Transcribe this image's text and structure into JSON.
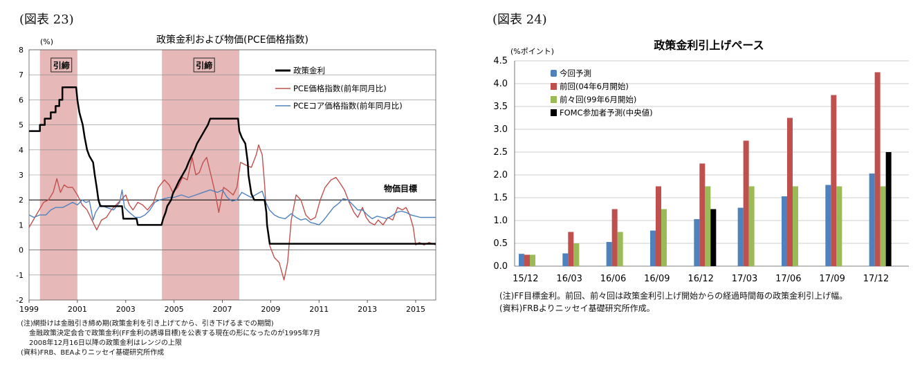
{
  "left": {
    "figure_label": "(図表 23)",
    "notes": [
      "(注)網掛けは金融引き締め期(政策金利を引き上げてから、引き下げるまでの期間)",
      "金融政策決定会合で政策金利(FF金利の誘導目標)を公表する現在の形になったのが1995年7月",
      "2008年12月16日以降の政策金利はレンジの上限",
      "(資料)FRB、BEAよりニッセイ基礎研究所作成"
    ]
  },
  "right": {
    "figure_label": "(図表 24)",
    "notes": [
      "(注)FF目標金利。前回、前々回は政策金利引上げ開始からの経過時間毎の政策金利引上げ幅。",
      "(資料)FRBよりニッセイ基礎研究所作成。"
    ]
  },
  "chart_data": [
    {
      "type": "line",
      "title": "政策金利および物価(PCE価格指数)",
      "ylabel": "(%)",
      "ylim": [
        -2,
        8
      ],
      "yticks": [
        -2,
        -1,
        0,
        1,
        2,
        3,
        4,
        5,
        6,
        7,
        8
      ],
      "xlim": [
        1999.0,
        2015.83
      ],
      "xticks": [
        "1999",
        "2001",
        "2003",
        "2005",
        "2007",
        "2009",
        "2011",
        "2013",
        "2015"
      ],
      "grid": true,
      "legend_position": "top-right",
      "shaded_periods": [
        {
          "label": "引締",
          "start": 1999.45,
          "end": 2001.0
        },
        {
          "label": "引締",
          "start": 2004.5,
          "end": 2007.7
        }
      ],
      "reference_line": {
        "label": "物価目標",
        "y": 2
      },
      "colors": {
        "policy": "#000000",
        "pce": "#c0504d",
        "core": "#4f81bd",
        "shade": "#e6b9b8"
      },
      "series": [
        {
          "name": "政策金利",
          "points": [
            [
              1999.0,
              4.75
            ],
            [
              1999.45,
              4.75
            ],
            [
              1999.45,
              5.0
            ],
            [
              1999.65,
              5.0
            ],
            [
              1999.65,
              5.25
            ],
            [
              1999.9,
              5.25
            ],
            [
              1999.9,
              5.5
            ],
            [
              2000.1,
              5.5
            ],
            [
              2000.1,
              5.75
            ],
            [
              2000.25,
              5.75
            ],
            [
              2000.25,
              6.0
            ],
            [
              2000.38,
              6.0
            ],
            [
              2000.38,
              6.5
            ],
            [
              2000.95,
              6.5
            ],
            [
              2001.0,
              6.0
            ],
            [
              2001.08,
              5.5
            ],
            [
              2001.22,
              5.0
            ],
            [
              2001.3,
              4.5
            ],
            [
              2001.4,
              4.0
            ],
            [
              2001.5,
              3.75
            ],
            [
              2001.65,
              3.5
            ],
            [
              2001.72,
              3.0
            ],
            [
              2001.8,
              2.5
            ],
            [
              2001.87,
              2.0
            ],
            [
              2001.95,
              1.75
            ],
            [
              2002.85,
              1.75
            ],
            [
              2002.9,
              1.25
            ],
            [
              2003.45,
              1.25
            ],
            [
              2003.5,
              1.0
            ],
            [
              2004.48,
              1.0
            ],
            [
              2004.55,
              1.25
            ],
            [
              2004.65,
              1.5
            ],
            [
              2004.72,
              1.75
            ],
            [
              2004.88,
              2.0
            ],
            [
              2004.95,
              2.25
            ],
            [
              2005.08,
              2.5
            ],
            [
              2005.2,
              2.75
            ],
            [
              2005.35,
              3.0
            ],
            [
              2005.5,
              3.25
            ],
            [
              2005.6,
              3.5
            ],
            [
              2005.72,
              3.75
            ],
            [
              2005.85,
              4.0
            ],
            [
              2005.95,
              4.25
            ],
            [
              2006.1,
              4.5
            ],
            [
              2006.25,
              4.75
            ],
            [
              2006.4,
              5.0
            ],
            [
              2006.5,
              5.25
            ],
            [
              2007.65,
              5.25
            ],
            [
              2007.7,
              4.75
            ],
            [
              2007.8,
              4.5
            ],
            [
              2007.95,
              4.25
            ],
            [
              2008.05,
              3.5
            ],
            [
              2008.08,
              3.0
            ],
            [
              2008.2,
              2.25
            ],
            [
              2008.32,
              2.0
            ],
            [
              2008.75,
              2.0
            ],
            [
              2008.82,
              1.5
            ],
            [
              2008.85,
              1.0
            ],
            [
              2008.96,
              0.25
            ],
            [
              2015.83,
              0.25
            ]
          ]
        },
        {
          "name": "PCE価格指数(前年同月比)",
          "points": [
            [
              1999.0,
              0.9
            ],
            [
              1999.3,
              1.4
            ],
            [
              1999.6,
              1.9
            ],
            [
              1999.8,
              2.0
            ],
            [
              2000.0,
              2.3
            ],
            [
              2000.15,
              2.85
            ],
            [
              2000.3,
              2.3
            ],
            [
              2000.45,
              2.6
            ],
            [
              2000.6,
              2.5
            ],
            [
              2000.8,
              2.5
            ],
            [
              2001.0,
              2.2
            ],
            [
              2001.2,
              1.8
            ],
            [
              2001.4,
              1.6
            ],
            [
              2001.6,
              1.2
            ],
            [
              2001.8,
              0.8
            ],
            [
              2002.0,
              1.2
            ],
            [
              2002.2,
              1.3
            ],
            [
              2002.4,
              1.6
            ],
            [
              2002.6,
              1.8
            ],
            [
              2002.8,
              2.0
            ],
            [
              2003.0,
              2.2
            ],
            [
              2003.15,
              1.8
            ],
            [
              2003.3,
              1.6
            ],
            [
              2003.5,
              1.9
            ],
            [
              2003.7,
              1.8
            ],
            [
              2003.9,
              1.6
            ],
            [
              2004.15,
              1.9
            ],
            [
              2004.35,
              2.5
            ],
            [
              2004.6,
              2.8
            ],
            [
              2004.8,
              2.6
            ],
            [
              2004.95,
              2.3
            ],
            [
              2005.15,
              2.5
            ],
            [
              2005.35,
              2.9
            ],
            [
              2005.55,
              2.8
            ],
            [
              2005.75,
              3.7
            ],
            [
              2005.9,
              3.0
            ],
            [
              2006.05,
              3.1
            ],
            [
              2006.2,
              3.5
            ],
            [
              2006.35,
              3.7
            ],
            [
              2006.55,
              2.9
            ],
            [
              2006.72,
              2.2
            ],
            [
              2006.85,
              1.5
            ],
            [
              2007.05,
              2.5
            ],
            [
              2007.2,
              2.4
            ],
            [
              2007.45,
              2.2
            ],
            [
              2007.6,
              2.5
            ],
            [
              2007.75,
              3.5
            ],
            [
              2007.95,
              3.4
            ],
            [
              2008.2,
              3.3
            ],
            [
              2008.4,
              3.8
            ],
            [
              2008.5,
              4.2
            ],
            [
              2008.65,
              3.8
            ],
            [
              2008.75,
              2.6
            ],
            [
              2008.85,
              1.0
            ],
            [
              2008.95,
              0.2
            ],
            [
              2009.15,
              -0.3
            ],
            [
              2009.35,
              -0.5
            ],
            [
              2009.55,
              -1.2
            ],
            [
              2009.7,
              -0.5
            ],
            [
              2009.85,
              1.2
            ],
            [
              2010.05,
              2.2
            ],
            [
              2010.25,
              2.0
            ],
            [
              2010.45,
              1.4
            ],
            [
              2010.65,
              1.2
            ],
            [
              2010.85,
              1.3
            ],
            [
              2011.05,
              2.0
            ],
            [
              2011.25,
              2.5
            ],
            [
              2011.5,
              2.8
            ],
            [
              2011.7,
              2.9
            ],
            [
              2011.85,
              2.7
            ],
            [
              2012.05,
              2.4
            ],
            [
              2012.25,
              1.9
            ],
            [
              2012.45,
              1.5
            ],
            [
              2012.6,
              1.3
            ],
            [
              2012.8,
              1.7
            ],
            [
              2012.95,
              1.3
            ],
            [
              2013.1,
              1.1
            ],
            [
              2013.3,
              1.0
            ],
            [
              2013.45,
              1.2
            ],
            [
              2013.65,
              1.0
            ],
            [
              2013.85,
              1.3
            ],
            [
              2014.05,
              1.2
            ],
            [
              2014.25,
              1.7
            ],
            [
              2014.45,
              1.6
            ],
            [
              2014.6,
              1.7
            ],
            [
              2014.75,
              1.4
            ],
            [
              2014.9,
              0.9
            ],
            [
              2015.0,
              0.2
            ],
            [
              2015.15,
              0.3
            ],
            [
              2015.35,
              0.2
            ],
            [
              2015.55,
              0.3
            ],
            [
              2015.83,
              0.2
            ]
          ]
        },
        {
          "name": "PCEコア価格指数(前年同月比)",
          "points": [
            [
              1999.0,
              1.4
            ],
            [
              1999.2,
              1.3
            ],
            [
              1999.45,
              1.4
            ],
            [
              1999.7,
              1.4
            ],
            [
              1999.9,
              1.6
            ],
            [
              2000.1,
              1.7
            ],
            [
              2000.4,
              1.7
            ],
            [
              2000.6,
              1.8
            ],
            [
              2000.8,
              1.9
            ],
            [
              2001.0,
              1.8
            ],
            [
              2001.2,
              2.0
            ],
            [
              2001.35,
              1.9
            ],
            [
              2001.5,
              1.95
            ],
            [
              2001.65,
              1.2
            ],
            [
              2001.75,
              1.5
            ],
            [
              2001.95,
              1.8
            ],
            [
              2002.2,
              1.7
            ],
            [
              2002.5,
              1.6
            ],
            [
              2002.75,
              1.9
            ],
            [
              2002.85,
              2.4
            ],
            [
              2002.95,
              1.7
            ],
            [
              2003.15,
              1.5
            ],
            [
              2003.4,
              1.3
            ],
            [
              2003.6,
              1.3
            ],
            [
              2003.8,
              1.4
            ],
            [
              2004.0,
              1.6
            ],
            [
              2004.2,
              1.9
            ],
            [
              2004.4,
              2.0
            ],
            [
              2004.6,
              2.05
            ],
            [
              2004.8,
              2.1
            ],
            [
              2005.0,
              2.1
            ],
            [
              2005.3,
              2.2
            ],
            [
              2005.6,
              2.1
            ],
            [
              2005.9,
              2.2
            ],
            [
              2006.2,
              2.3
            ],
            [
              2006.5,
              2.4
            ],
            [
              2006.8,
              2.3
            ],
            [
              2007.0,
              2.4
            ],
            [
              2007.2,
              2.1
            ],
            [
              2007.4,
              1.95
            ],
            [
              2007.6,
              2.0
            ],
            [
              2007.8,
              2.3
            ],
            [
              2008.0,
              2.2
            ],
            [
              2008.2,
              2.1
            ],
            [
              2008.45,
              2.25
            ],
            [
              2008.65,
              2.35
            ],
            [
              2008.8,
              1.9
            ],
            [
              2008.95,
              1.6
            ],
            [
              2009.15,
              1.4
            ],
            [
              2009.35,
              1.3
            ],
            [
              2009.6,
              1.25
            ],
            [
              2009.85,
              1.45
            ],
            [
              2010.05,
              1.3
            ],
            [
              2010.25,
              1.2
            ],
            [
              2010.45,
              1.25
            ],
            [
              2010.65,
              1.1
            ],
            [
              2010.85,
              1.05
            ],
            [
              2011.0,
              1.0
            ],
            [
              2011.2,
              1.2
            ],
            [
              2011.4,
              1.45
            ],
            [
              2011.6,
              1.7
            ],
            [
              2011.8,
              1.85
            ],
            [
              2012.0,
              2.05
            ],
            [
              2012.2,
              2.0
            ],
            [
              2012.4,
              1.8
            ],
            [
              2012.6,
              1.6
            ],
            [
              2012.8,
              1.6
            ],
            [
              2013.0,
              1.4
            ],
            [
              2013.2,
              1.25
            ],
            [
              2013.4,
              1.35
            ],
            [
              2013.6,
              1.3
            ],
            [
              2013.8,
              1.25
            ],
            [
              2014.0,
              1.35
            ],
            [
              2014.2,
              1.5
            ],
            [
              2014.4,
              1.55
            ],
            [
              2014.6,
              1.5
            ],
            [
              2014.8,
              1.4
            ],
            [
              2015.0,
              1.35
            ],
            [
              2015.2,
              1.3
            ],
            [
              2015.4,
              1.3
            ],
            [
              2015.6,
              1.3
            ],
            [
              2015.83,
              1.3
            ]
          ]
        }
      ]
    },
    {
      "type": "bar",
      "title": "政策金利引上げペース",
      "ylabel": "(%ポイント)",
      "ylim": [
        0,
        4.5
      ],
      "yticks": [
        "0.0",
        "0.5",
        "1.0",
        "1.5",
        "2.0",
        "2.5",
        "3.0",
        "3.5",
        "4.0",
        "4.5"
      ],
      "categories": [
        "15/12",
        "16/03",
        "16/06",
        "16/09",
        "16/12",
        "17/03",
        "17/06",
        "17/09",
        "17/12"
      ],
      "grid": true,
      "legend_position": "top-left",
      "series": [
        {
          "name": "今回予測",
          "color": "#4f81bd",
          "values": [
            0.27,
            0.28,
            0.53,
            0.78,
            1.03,
            1.28,
            1.53,
            1.78,
            2.03
          ]
        },
        {
          "name": "前回(04年6月開始)",
          "color": "#c0504d",
          "values": [
            0.25,
            0.75,
            1.25,
            1.75,
            2.25,
            2.75,
            3.25,
            3.75,
            4.25
          ]
        },
        {
          "name": "前々回(99年6月開始)",
          "color": "#9bbb59",
          "values": [
            0.25,
            0.5,
            0.75,
            1.25,
            1.75,
            1.75,
            1.75,
            1.75,
            1.75
          ]
        },
        {
          "name": "FOMC参加者予測(中央値)",
          "color": "#000000",
          "values": [
            null,
            null,
            null,
            null,
            1.25,
            null,
            null,
            null,
            2.5
          ]
        }
      ]
    }
  ]
}
